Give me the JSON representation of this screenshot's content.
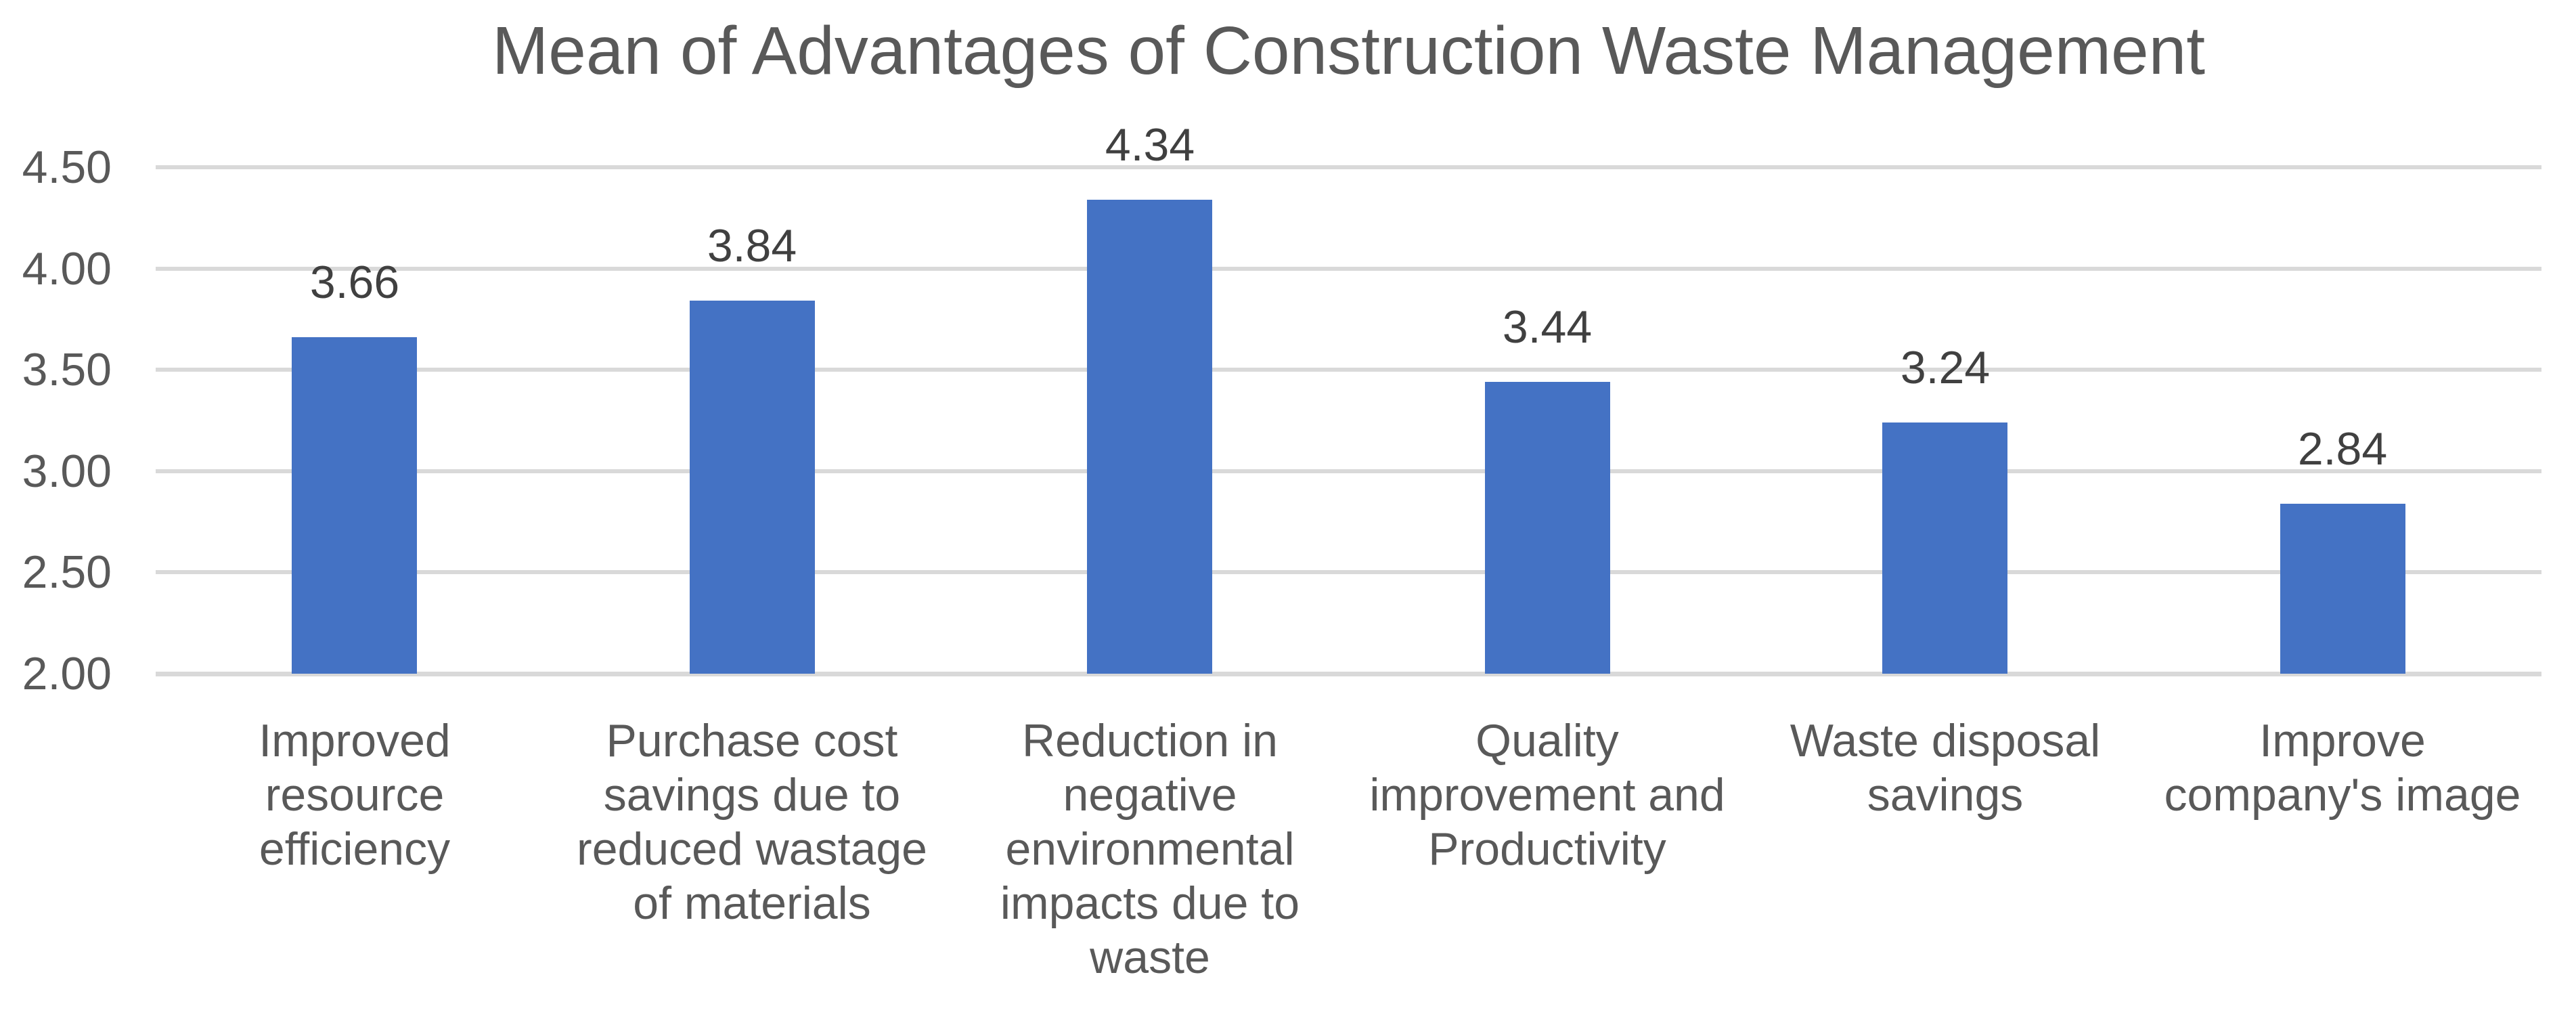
{
  "chart_data": {
    "type": "bar",
    "title": "Mean of Advantages of Construction Waste Management",
    "categories": [
      "Improved resource efficiency",
      "Purchase cost savings due to reduced wastage of materials",
      "Reduction in negative environmental impacts due to waste",
      "Quality improvement and Productivity",
      "Waste disposal savings",
      "Improve company's image"
    ],
    "category_lines": [
      [
        "Improved resource",
        "efficiency"
      ],
      [
        "Purchase cost",
        "savings due to",
        "reduced wastage",
        "of materials"
      ],
      [
        "Reduction in",
        "negative",
        "environmental",
        "impacts due to",
        "waste"
      ],
      [
        "Quality",
        "improvement and",
        "Productivity"
      ],
      [
        "Waste disposal",
        "savings"
      ],
      [
        "Improve",
        "company's image"
      ]
    ],
    "values": [
      3.66,
      3.84,
      4.34,
      3.44,
      3.24,
      2.84
    ],
    "data_labels": [
      "3.66",
      "3.84",
      "4.34",
      "3.44",
      "3.24",
      "2.84"
    ],
    "y_ticks": [
      "4.50",
      "4.00",
      "3.50",
      "3.00",
      "2.50",
      "2.00"
    ],
    "y_min": 2.0,
    "y_max": 4.5,
    "y_step": 0.5,
    "xlabel": "",
    "ylabel": "",
    "legend": "none",
    "grid": "horizontal",
    "colors": {
      "bar": "#4472C4",
      "gridline": "#D9D9D9",
      "title_text": "#595959",
      "axis_text": "#595959",
      "category_text": "#595959",
      "data_label_text": "#404040",
      "background": "#FFFFFF"
    }
  }
}
